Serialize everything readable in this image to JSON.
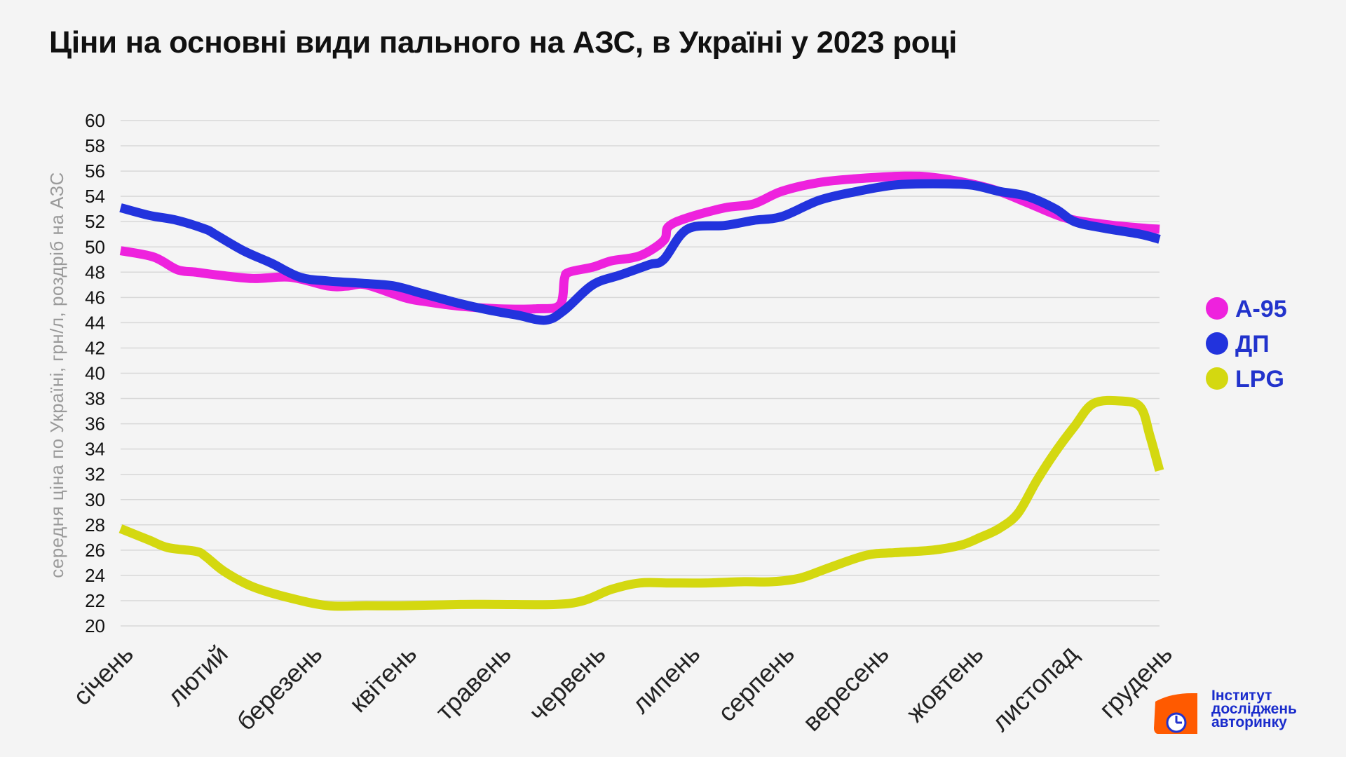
{
  "title": "Ціни на основні види пального на АЗС, в Україні у 2023 році",
  "brand": {
    "text": "Інститут\nдосліджень\nавторинку",
    "logo_color": "#ff5a00",
    "logo_accent": "#2233cc"
  },
  "colors": {
    "A-95": "#ee22dd",
    "ДП": "#2233dd",
    "LPG": "#d4d810",
    "grid": "#d8d8d8"
  },
  "chart_data": {
    "type": "line",
    "title": "Ціни на основні види пального на АЗС, в Україні у 2023 році",
    "xlabel": "",
    "ylabel": "середня ціна по Україні, грн/л, роздріб на АЗС",
    "ylim": [
      20,
      60
    ],
    "ytick_step": 2,
    "grid": true,
    "legend": "right",
    "categories": [
      "січень",
      "лютий",
      "березень",
      "квітень",
      "травень",
      "червень",
      "липень",
      "серпень",
      "вересень",
      "жовтень",
      "листопад",
      "грудень"
    ],
    "series": [
      {
        "name": "А-95",
        "x": [
          0,
          0.35,
          0.6,
          0.8,
          1.0,
          1.4,
          1.8,
          2.2,
          2.4,
          2.6,
          3.0,
          3.2,
          3.6,
          4.0,
          4.4,
          4.65,
          4.7,
          4.75,
          5.0,
          5.2,
          5.5,
          5.75,
          5.8,
          6.0,
          6.4,
          6.7,
          7.0,
          7.4,
          7.8,
          8.3,
          8.6,
          9.0,
          9.3,
          9.6,
          10.0,
          10.4,
          10.8,
          11.0
        ],
        "values": [
          49.7,
          49.2,
          48.2,
          48.0,
          47.8,
          47.5,
          47.6,
          46.9,
          46.9,
          47.0,
          46.0,
          45.7,
          45.3,
          45.1,
          45.1,
          45.4,
          47.5,
          48.0,
          48.4,
          48.9,
          49.3,
          50.5,
          51.6,
          52.3,
          53.1,
          53.4,
          54.4,
          55.1,
          55.4,
          55.6,
          55.5,
          55.0,
          54.4,
          53.5,
          52.3,
          51.8,
          51.5,
          51.4
        ]
      },
      {
        "name": "ДП",
        "x": [
          0,
          0.3,
          0.6,
          0.9,
          1.0,
          1.3,
          1.6,
          1.9,
          2.2,
          2.6,
          2.9,
          3.2,
          3.6,
          3.9,
          4.2,
          4.5,
          4.7,
          5.0,
          5.3,
          5.6,
          5.75,
          6.0,
          6.4,
          6.7,
          7.0,
          7.4,
          7.8,
          8.2,
          8.6,
          9.0,
          9.3,
          9.6,
          9.9,
          10.1,
          10.4,
          10.8,
          11.0
        ],
        "values": [
          53.1,
          52.5,
          52.1,
          51.4,
          51.0,
          49.7,
          48.7,
          47.6,
          47.3,
          47.1,
          46.9,
          46.3,
          45.5,
          45.0,
          44.6,
          44.2,
          45.0,
          47.0,
          47.8,
          48.6,
          49.0,
          51.4,
          51.7,
          52.1,
          52.4,
          53.7,
          54.4,
          54.9,
          55.0,
          54.9,
          54.4,
          54.0,
          53.0,
          52.0,
          51.5,
          51.0,
          50.6
        ]
      },
      {
        "name": "LPG",
        "x": [
          0,
          0.3,
          0.5,
          0.8,
          0.9,
          1.1,
          1.4,
          1.8,
          2.2,
          2.6,
          3.0,
          3.6,
          4.0,
          4.6,
          4.9,
          5.2,
          5.5,
          5.8,
          6.2,
          6.6,
          6.9,
          7.2,
          7.5,
          7.9,
          8.2,
          8.6,
          8.9,
          9.1,
          9.3,
          9.5,
          9.7,
          9.9,
          10.1,
          10.3,
          10.6,
          10.8,
          10.9,
          11.0
        ],
        "values": [
          27.7,
          26.8,
          26.2,
          25.9,
          25.5,
          24.3,
          23.1,
          22.2,
          21.6,
          21.6,
          21.6,
          21.7,
          21.7,
          21.7,
          22.0,
          22.9,
          23.4,
          23.4,
          23.4,
          23.5,
          23.5,
          23.8,
          24.6,
          25.6,
          25.8,
          26.0,
          26.4,
          27.0,
          27.7,
          28.9,
          31.5,
          33.8,
          35.8,
          37.6,
          37.8,
          37.3,
          35.0,
          32.3
        ]
      }
    ]
  }
}
